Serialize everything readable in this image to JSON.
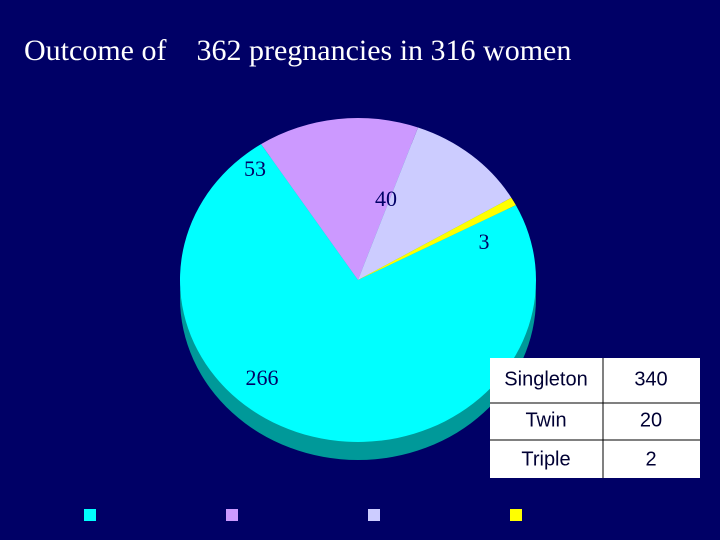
{
  "chart_data": {
    "type": "pie",
    "title": "Outcome of    362 pregnancies in 316 women",
    "categories": [
      null,
      null,
      null,
      null
    ],
    "values": [
      266,
      53,
      40,
      3
    ],
    "colors": [
      "#00ffff",
      "#cc99ff",
      "#ccccff",
      "#ffff00"
    ],
    "legend": "bottom"
  },
  "table": {
    "rows": [
      [
        "Singleton",
        340
      ],
      [
        "Twin",
        20
      ],
      [
        "Triple",
        2
      ]
    ]
  }
}
